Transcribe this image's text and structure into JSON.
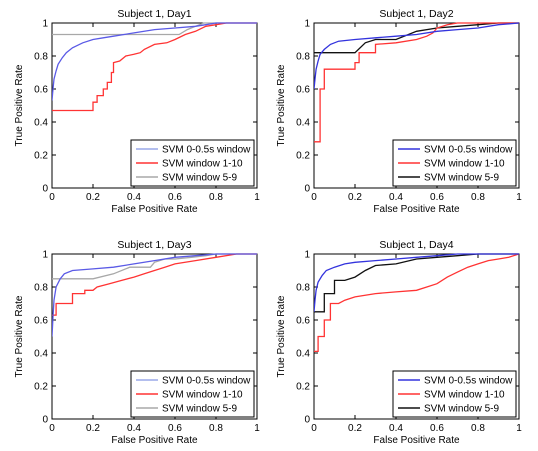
{
  "chart_data": [
    {
      "type": "line",
      "title": "Subject 1, Day1",
      "xlabel": "False Positive Rate",
      "ylabel": "True Positive Rate",
      "xlim": [
        0,
        1
      ],
      "ylim": [
        0,
        1
      ],
      "xticks": [
        "0",
        "0.2",
        "0.4",
        "0.6",
        "0.8",
        "1"
      ],
      "yticks": [
        "0",
        "0.2",
        "0.4",
        "0.6",
        "0.8",
        "1"
      ],
      "grid": false,
      "legend_position": "bottom-right",
      "series": [
        {
          "name": "SVM 0-0.5s window",
          "color": "#5a5ae6",
          "legend_color": "#9aa8e8",
          "points": [
            [
              0,
              0.53
            ],
            [
              0.005,
              0.6
            ],
            [
              0.01,
              0.66
            ],
            [
              0.02,
              0.71
            ],
            [
              0.03,
              0.75
            ],
            [
              0.05,
              0.79
            ],
            [
              0.07,
              0.82
            ],
            [
              0.1,
              0.85
            ],
            [
              0.15,
              0.88
            ],
            [
              0.2,
              0.9
            ],
            [
              0.25,
              0.91
            ],
            [
              0.3,
              0.92
            ],
            [
              0.4,
              0.94
            ],
            [
              0.5,
              0.96
            ],
            [
              0.6,
              0.97
            ],
            [
              0.7,
              0.98
            ],
            [
              0.75,
              0.99
            ],
            [
              0.8,
              1.0
            ],
            [
              1,
              1.0
            ]
          ]
        },
        {
          "name": "SVM window 1-10",
          "color": "#ff3333",
          "legend_color": "#ff3333",
          "points": [
            [
              0,
              0.47
            ],
            [
              0.2,
              0.47
            ],
            [
              0.2,
              0.52
            ],
            [
              0.22,
              0.52
            ],
            [
              0.22,
              0.56
            ],
            [
              0.25,
              0.56
            ],
            [
              0.25,
              0.6
            ],
            [
              0.27,
              0.6
            ],
            [
              0.27,
              0.64
            ],
            [
              0.29,
              0.64
            ],
            [
              0.29,
              0.7
            ],
            [
              0.3,
              0.7
            ],
            [
              0.3,
              0.76
            ],
            [
              0.33,
              0.77
            ],
            [
              0.36,
              0.8
            ],
            [
              0.4,
              0.81
            ],
            [
              0.43,
              0.82
            ],
            [
              0.45,
              0.84
            ],
            [
              0.5,
              0.87
            ],
            [
              0.56,
              0.88
            ],
            [
              0.6,
              0.9
            ],
            [
              0.65,
              0.93
            ],
            [
              0.7,
              0.95
            ],
            [
              0.75,
              0.98
            ],
            [
              0.8,
              0.99
            ],
            [
              0.85,
              1.0
            ],
            [
              1,
              1.0
            ]
          ]
        },
        {
          "name": "SVM window 5-9",
          "color": "#a8a8a8",
          "legend_color": "#a8a8a8",
          "points": [
            [
              0,
              0.93
            ],
            [
              0.62,
              0.93
            ],
            [
              0.66,
              0.96
            ],
            [
              0.7,
              0.98
            ],
            [
              0.74,
              1.0
            ],
            [
              1,
              1.0
            ]
          ]
        }
      ]
    },
    {
      "type": "line",
      "title": "Subject 1, Day2",
      "xlabel": "False Positive Rate",
      "ylabel": "True Positive Rate",
      "xlim": [
        0,
        1
      ],
      "ylim": [
        0,
        1
      ],
      "xticks": [
        "0",
        "0.2",
        "0.4",
        "0.6",
        "0.8",
        "1"
      ],
      "yticks": [
        "0",
        "0.2",
        "0.4",
        "0.6",
        "0.8",
        "1"
      ],
      "grid": false,
      "legend_position": "bottom-right",
      "series": [
        {
          "name": "SVM 0-0.5s window",
          "color": "#3333dd",
          "legend_color": "#3333dd",
          "points": [
            [
              0,
              0.6
            ],
            [
              0.005,
              0.66
            ],
            [
              0.01,
              0.72
            ],
            [
              0.02,
              0.77
            ],
            [
              0.03,
              0.81
            ],
            [
              0.05,
              0.84
            ],
            [
              0.08,
              0.87
            ],
            [
              0.12,
              0.89
            ],
            [
              0.2,
              0.9
            ],
            [
              0.3,
              0.91
            ],
            [
              0.4,
              0.92
            ],
            [
              0.5,
              0.93
            ],
            [
              0.6,
              0.95
            ],
            [
              0.7,
              0.96
            ],
            [
              0.8,
              0.97
            ],
            [
              0.9,
              0.99
            ],
            [
              1,
              1.0
            ]
          ]
        },
        {
          "name": "SVM window 1-10",
          "color": "#ff3333",
          "legend_color": "#ff3333",
          "points": [
            [
              0,
              0.28
            ],
            [
              0.03,
              0.28
            ],
            [
              0.03,
              0.6
            ],
            [
              0.05,
              0.6
            ],
            [
              0.05,
              0.72
            ],
            [
              0.2,
              0.72
            ],
            [
              0.2,
              0.76
            ],
            [
              0.22,
              0.76
            ],
            [
              0.22,
              0.82
            ],
            [
              0.3,
              0.82
            ],
            [
              0.3,
              0.87
            ],
            [
              0.4,
              0.88
            ],
            [
              0.5,
              0.9
            ],
            [
              0.55,
              0.92
            ],
            [
              0.58,
              0.94
            ],
            [
              0.6,
              0.97
            ],
            [
              0.65,
              0.99
            ],
            [
              0.7,
              1.0
            ],
            [
              1,
              1.0
            ]
          ]
        },
        {
          "name": "SVM window 5-9",
          "color": "#111111",
          "legend_color": "#111111",
          "points": [
            [
              0,
              0.82
            ],
            [
              0.2,
              0.82
            ],
            [
              0.25,
              0.88
            ],
            [
              0.3,
              0.9
            ],
            [
              0.4,
              0.9
            ],
            [
              0.5,
              0.95
            ],
            [
              0.6,
              0.97
            ],
            [
              0.7,
              0.98
            ],
            [
              0.8,
              0.99
            ],
            [
              0.9,
              1.0
            ],
            [
              1,
              1.0
            ]
          ]
        }
      ]
    },
    {
      "type": "line",
      "title": "Subject 1, Day3",
      "xlabel": "False Positive Rate",
      "ylabel": "True Positive Rate",
      "xlim": [
        0,
        1
      ],
      "ylim": [
        0,
        1
      ],
      "xticks": [
        "0",
        "0.2",
        "0.4",
        "0.6",
        "0.8",
        "1"
      ],
      "yticks": [
        "0",
        "0.2",
        "0.4",
        "0.6",
        "0.8",
        "1"
      ],
      "grid": false,
      "legend_position": "bottom-right",
      "series": [
        {
          "name": "SVM 0-0.5s window",
          "color": "#5a5ae6",
          "legend_color": "#9aa8e8",
          "points": [
            [
              0,
              0.5
            ],
            [
              0.005,
              0.62
            ],
            [
              0.01,
              0.72
            ],
            [
              0.02,
              0.8
            ],
            [
              0.04,
              0.85
            ],
            [
              0.06,
              0.88
            ],
            [
              0.1,
              0.9
            ],
            [
              0.2,
              0.91
            ],
            [
              0.3,
              0.92
            ],
            [
              0.4,
              0.94
            ],
            [
              0.5,
              0.96
            ],
            [
              0.6,
              0.98
            ],
            [
              0.7,
              0.99
            ],
            [
              0.8,
              1.0
            ],
            [
              1,
              1.0
            ]
          ]
        },
        {
          "name": "SVM window 1-10",
          "color": "#ff3333",
          "legend_color": "#ff3333",
          "points": [
            [
              0,
              0.63
            ],
            [
              0.02,
              0.63
            ],
            [
              0.02,
              0.7
            ],
            [
              0.1,
              0.7
            ],
            [
              0.1,
              0.76
            ],
            [
              0.16,
              0.76
            ],
            [
              0.16,
              0.78
            ],
            [
              0.2,
              0.78
            ],
            [
              0.22,
              0.8
            ],
            [
              0.28,
              0.82
            ],
            [
              0.34,
              0.84
            ],
            [
              0.4,
              0.86
            ],
            [
              0.45,
              0.88
            ],
            [
              0.5,
              0.9
            ],
            [
              0.55,
              0.92
            ],
            [
              0.6,
              0.94
            ],
            [
              0.7,
              0.96
            ],
            [
              0.8,
              0.98
            ],
            [
              0.9,
              1.0
            ],
            [
              1,
              1.0
            ]
          ]
        },
        {
          "name": "SVM window 5-9",
          "color": "#a8a8a8",
          "legend_color": "#a8a8a8",
          "points": [
            [
              0,
              0.85
            ],
            [
              0.2,
              0.85
            ],
            [
              0.3,
              0.88
            ],
            [
              0.38,
              0.92
            ],
            [
              0.48,
              0.92
            ],
            [
              0.5,
              0.95
            ],
            [
              0.55,
              0.97
            ],
            [
              0.6,
              0.97
            ],
            [
              0.68,
              0.98
            ],
            [
              0.75,
              0.99
            ],
            [
              0.8,
              1.0
            ],
            [
              1,
              1.0
            ]
          ]
        }
      ]
    },
    {
      "type": "line",
      "title": "Subject 1, Day4",
      "xlabel": "False Positive Rate",
      "ylabel": "True Positive Rate",
      "xlim": [
        0,
        1
      ],
      "ylim": [
        0,
        1
      ],
      "xticks": [
        "0",
        "0.2",
        "0.4",
        "0.6",
        "0.8",
        "1"
      ],
      "yticks": [
        "0",
        "0.2",
        "0.4",
        "0.6",
        "0.8",
        "1"
      ],
      "grid": false,
      "legend_position": "bottom-right",
      "series": [
        {
          "name": "SVM 0-0.5s window",
          "color": "#3333dd",
          "legend_color": "#3333dd",
          "points": [
            [
              0,
              0.65
            ],
            [
              0.005,
              0.72
            ],
            [
              0.01,
              0.78
            ],
            [
              0.02,
              0.83
            ],
            [
              0.04,
              0.87
            ],
            [
              0.06,
              0.9
            ],
            [
              0.1,
              0.92
            ],
            [
              0.15,
              0.94
            ],
            [
              0.2,
              0.95
            ],
            [
              0.3,
              0.96
            ],
            [
              0.4,
              0.97
            ],
            [
              0.5,
              0.98
            ],
            [
              0.6,
              0.99
            ],
            [
              0.7,
              1.0
            ],
            [
              1,
              1.0
            ]
          ]
        },
        {
          "name": "SVM window 1-10",
          "color": "#ff3333",
          "legend_color": "#ff3333",
          "points": [
            [
              0,
              0.41
            ],
            [
              0.02,
              0.41
            ],
            [
              0.02,
              0.5
            ],
            [
              0.05,
              0.5
            ],
            [
              0.05,
              0.6
            ],
            [
              0.08,
              0.6
            ],
            [
              0.08,
              0.7
            ],
            [
              0.12,
              0.7
            ],
            [
              0.15,
              0.72
            ],
            [
              0.2,
              0.74
            ],
            [
              0.3,
              0.76
            ],
            [
              0.4,
              0.77
            ],
            [
              0.5,
              0.78
            ],
            [
              0.55,
              0.8
            ],
            [
              0.6,
              0.82
            ],
            [
              0.65,
              0.86
            ],
            [
              0.7,
              0.89
            ],
            [
              0.75,
              0.92
            ],
            [
              0.8,
              0.94
            ],
            [
              0.85,
              0.96
            ],
            [
              0.9,
              0.97
            ],
            [
              0.95,
              0.98
            ],
            [
              1,
              1.0
            ]
          ]
        },
        {
          "name": "SVM window 5-9",
          "color": "#111111",
          "legend_color": "#111111",
          "points": [
            [
              0,
              0.65
            ],
            [
              0.05,
              0.65
            ],
            [
              0.05,
              0.76
            ],
            [
              0.1,
              0.76
            ],
            [
              0.1,
              0.84
            ],
            [
              0.15,
              0.84
            ],
            [
              0.2,
              0.86
            ],
            [
              0.25,
              0.9
            ],
            [
              0.3,
              0.93
            ],
            [
              0.4,
              0.94
            ],
            [
              0.5,
              0.97
            ],
            [
              0.6,
              0.98
            ],
            [
              0.7,
              0.99
            ],
            [
              0.8,
              1.0
            ],
            [
              1,
              1.0
            ]
          ]
        }
      ]
    }
  ]
}
